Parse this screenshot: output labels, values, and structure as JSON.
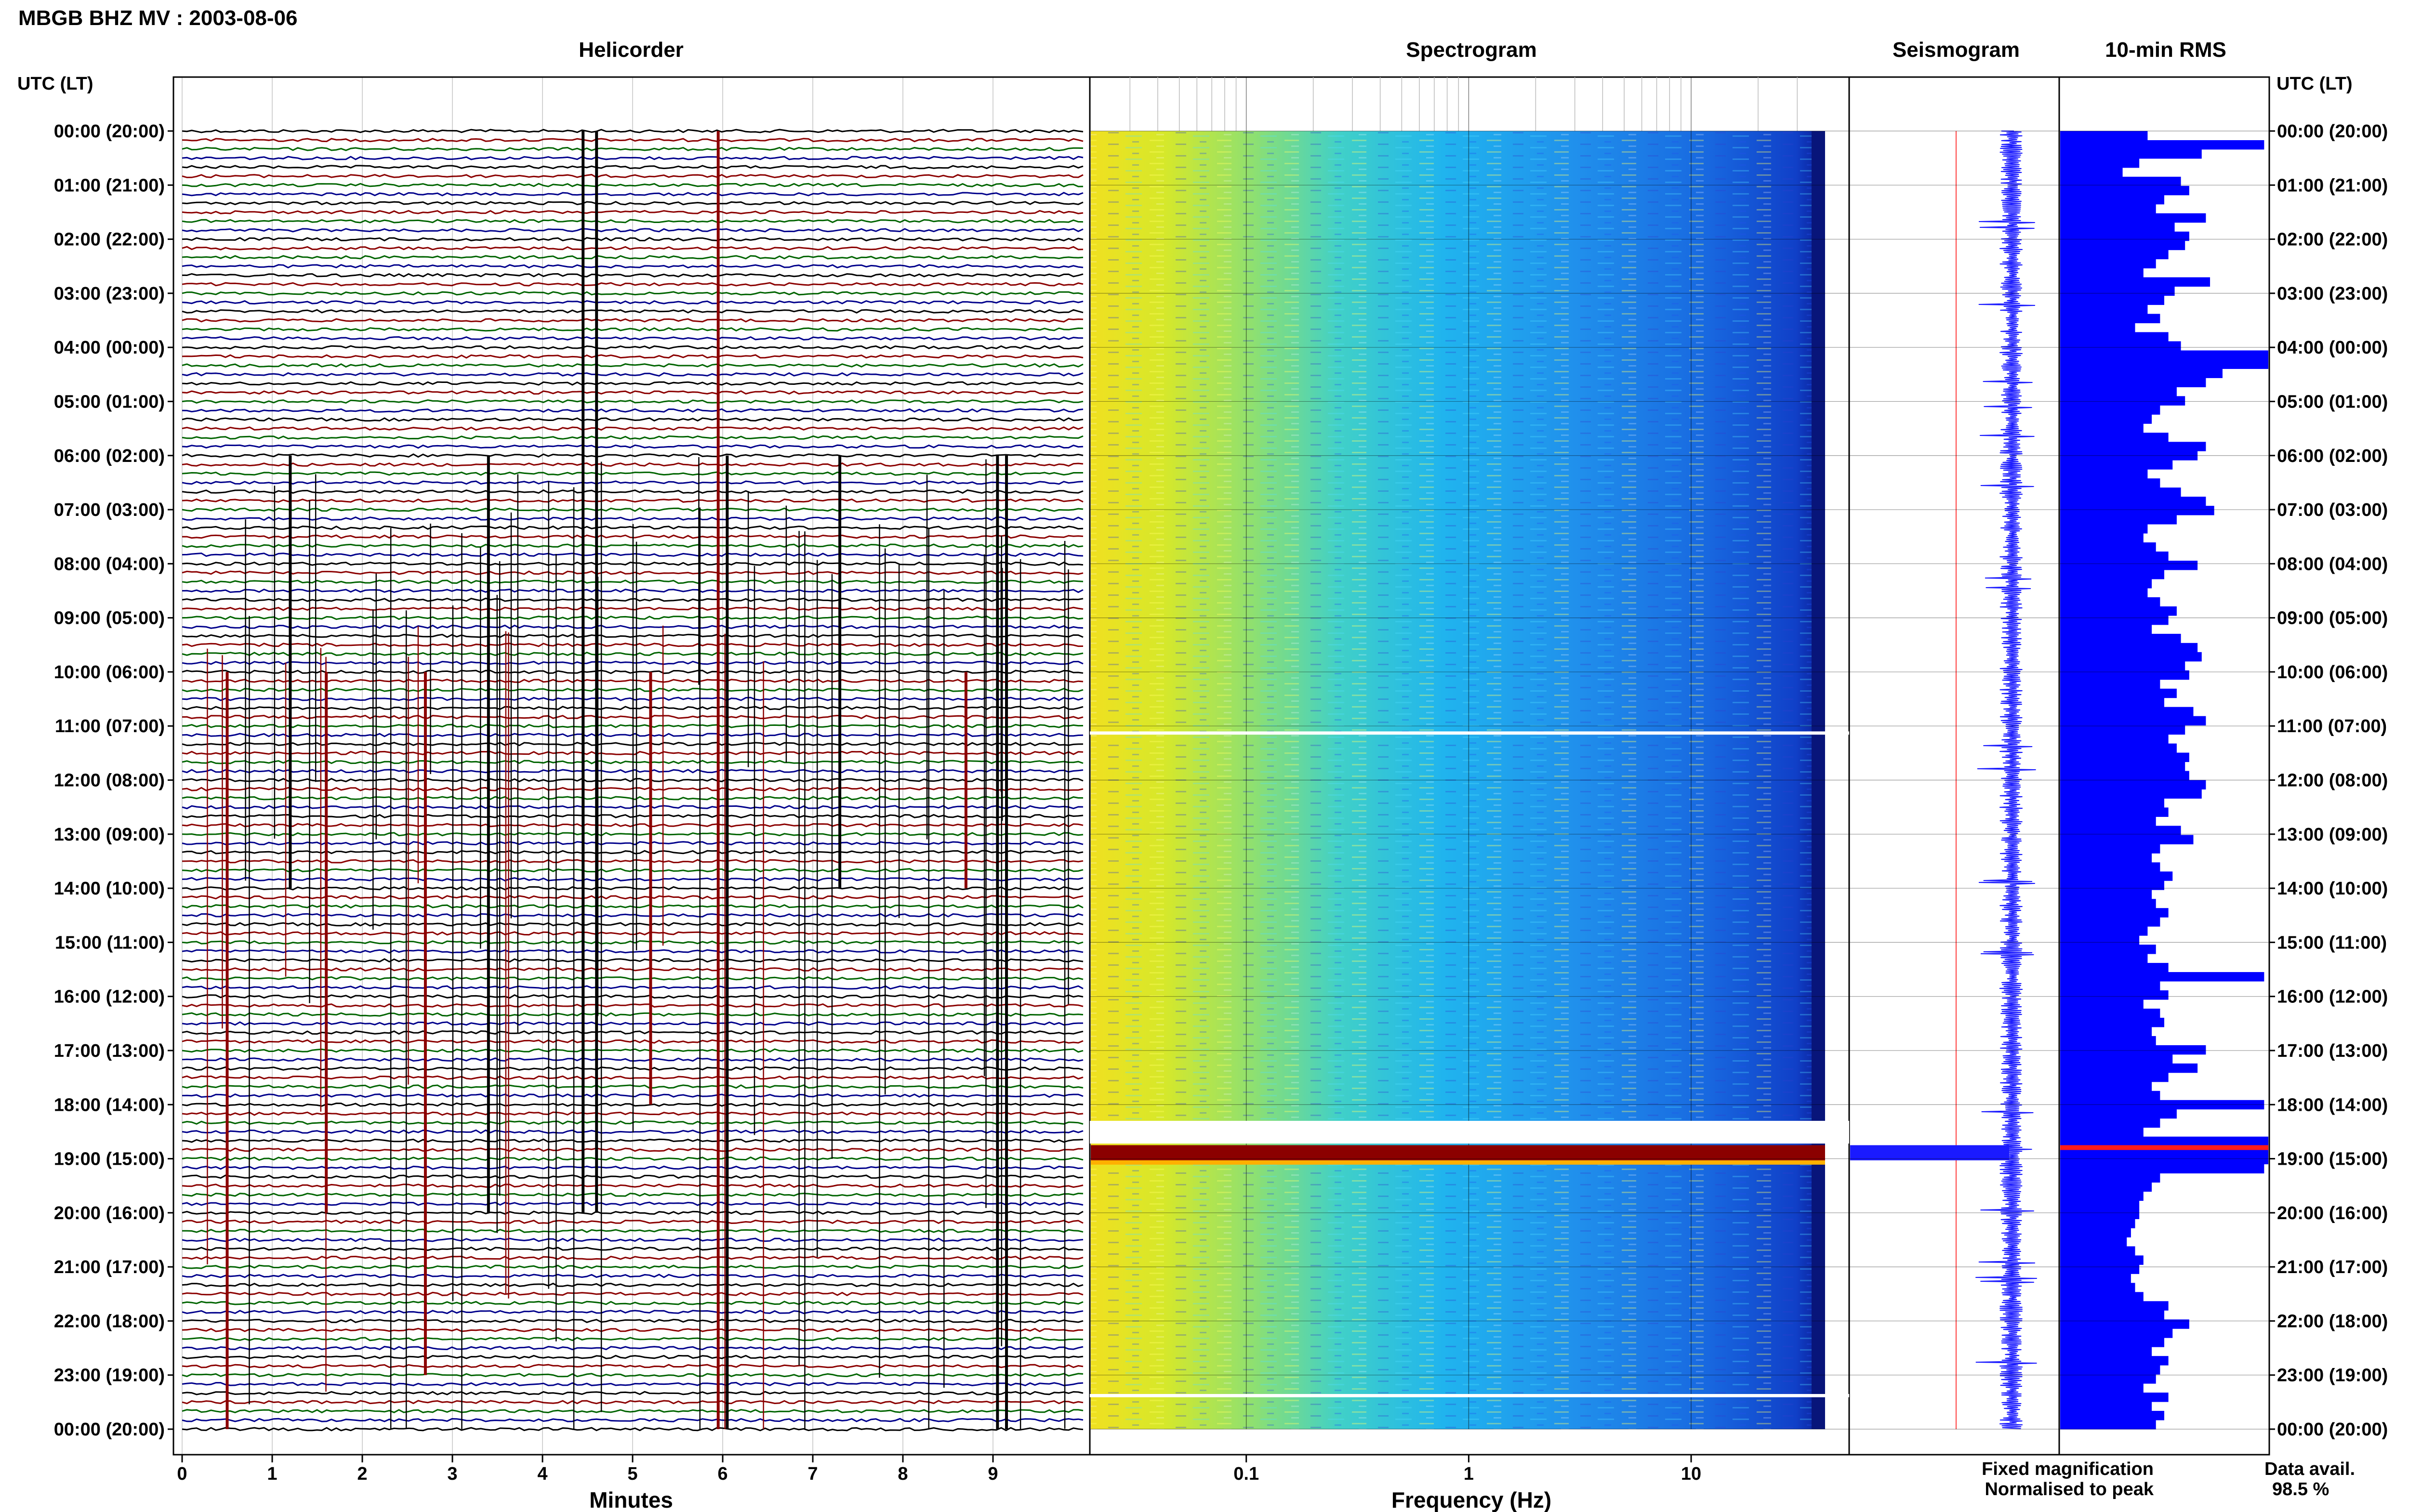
{
  "header": {
    "station_title": "MBGB BHZ MV : 2003-08-06"
  },
  "panels": {
    "helicorder": "Helicorder",
    "spectrogram": "Spectrogram",
    "seismogram": "Seismogram",
    "rms": "10-min RMS"
  },
  "axis": {
    "time_label": "UTC (LT)",
    "minutes_label": "Minutes",
    "frequency_label": "Frequency (Hz)"
  },
  "legend": {
    "fixed": "Fixed magnification",
    "normalised": "Normalised to peak",
    "fixed_color": "#1a1aff",
    "normalised_color": "#ff1a1a"
  },
  "data_availability": {
    "label": "Data avail.",
    "value": "98.5 %"
  },
  "chart_data": [
    {
      "type": "line",
      "title": "Helicorder",
      "xlabel": "Minutes",
      "x_ticks": [
        "0",
        "1",
        "2",
        "3",
        "4",
        "5",
        "6",
        "7",
        "8",
        "9"
      ],
      "xlim": [
        0,
        10
      ],
      "time_ticks": [
        "00:00 (20:00)",
        "01:00 (21:00)",
        "02:00 (22:00)",
        "03:00 (23:00)",
        "04:00 (00:00)",
        "05:00 (01:00)",
        "06:00 (02:00)",
        "07:00 (03:00)",
        "08:00 (04:00)",
        "09:00 (05:00)",
        "10:00 (06:00)",
        "11:00 (07:00)",
        "12:00 (08:00)",
        "13:00 (09:00)",
        "14:00 (10:00)",
        "15:00 (11:00)",
        "16:00 (12:00)",
        "17:00 (13:00)",
        "18:00 (14:00)",
        "19:00 (15:00)",
        "20:00 (16:00)",
        "21:00 (17:00)",
        "22:00 (18:00)",
        "23:00 (19:00)",
        "00:00 (20:00)"
      ],
      "lines_per_hour": 6,
      "trace_colors": [
        "#000000",
        "#8b0000",
        "#006400",
        "#00008b"
      ]
    },
    {
      "type": "heatmap",
      "title": "Spectrogram",
      "xlabel": "Frequency (Hz)",
      "x_scale": "log",
      "x_ticks": [
        "0.1",
        "1",
        "10"
      ],
      "xlim": [
        0.02,
        40
      ],
      "data_gaps_hours": [
        11.1,
        18.3,
        23.35
      ]
    },
    {
      "type": "line",
      "title": "Seismogram"
    },
    {
      "type": "bar",
      "title": "10-min RMS",
      "bar_color": "#0000ff",
      "values": [
        0.42,
        0.98,
        0.68,
        0.38,
        0.3,
        0.58,
        0.62,
        0.5,
        0.46,
        0.7,
        0.55,
        0.62,
        0.6,
        0.52,
        0.46,
        0.4,
        0.72,
        0.55,
        0.5,
        0.42,
        0.48,
        0.36,
        0.52,
        0.58,
        1.0,
        1.0,
        0.78,
        0.7,
        0.56,
        0.6,
        0.48,
        0.44,
        0.4,
        0.52,
        0.7,
        0.66,
        0.54,
        0.42,
        0.48,
        0.58,
        0.7,
        0.74,
        0.56,
        0.42,
        0.4,
        0.46,
        0.52,
        0.66,
        0.5,
        0.44,
        0.42,
        0.48,
        0.56,
        0.52,
        0.44,
        0.58,
        0.66,
        0.68,
        0.6,
        0.62,
        0.48,
        0.56,
        0.5,
        0.64,
        0.7,
        0.6,
        0.52,
        0.56,
        0.62,
        0.6,
        0.62,
        0.7,
        0.68,
        0.5,
        0.52,
        0.46,
        0.58,
        0.64,
        0.48,
        0.44,
        0.48,
        0.54,
        0.5,
        0.44,
        0.46,
        0.52,
        0.48,
        0.42,
        0.38,
        0.46,
        0.42,
        0.52,
        0.98,
        0.48,
        0.52,
        0.4,
        0.48,
        0.5,
        0.44,
        0.46,
        0.7,
        0.54,
        0.66,
        0.52,
        0.44,
        0.48,
        0.98,
        0.56,
        0.48,
        0.4,
        1.0,
        1.0,
        1.0,
        0.98,
        0.48,
        0.44,
        0.4,
        0.38,
        0.38,
        0.36,
        0.34,
        0.32,
        0.36,
        0.4,
        0.38,
        0.34,
        0.36,
        0.4,
        0.52,
        0.5,
        0.62,
        0.54,
        0.5,
        0.44,
        0.52,
        0.48,
        0.46,
        0.4,
        0.52,
        0.44,
        0.5,
        0.46
      ]
    }
  ]
}
